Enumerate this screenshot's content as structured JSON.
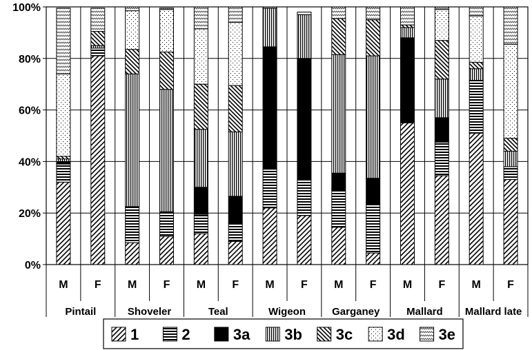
{
  "chart_data": {
    "type": "bar",
    "stacked": true,
    "percent": true,
    "groups": [
      "Pintail",
      "Shoveler",
      "Teal",
      "Wigeon",
      "Garganey",
      "Mallard",
      "Mallard late"
    ],
    "sexes": [
      "M",
      "F"
    ],
    "categories": [
      "Pintail M",
      "Pintail F",
      "Shoveler M",
      "Shoveler F",
      "Teal M",
      "Teal F",
      "Wigeon M",
      "Wigeon F",
      "Garganey M",
      "Garganey F",
      "Mallard M",
      "Mallard F",
      "Mallard late M",
      "Mallard late F"
    ],
    "ylim": [
      0,
      100
    ],
    "yticks": [
      "0%",
      "20%",
      "40%",
      "60%",
      "80%",
      "100%"
    ],
    "grid": true,
    "legend_position": "bottom",
    "series": [
      {
        "name": "1",
        "pattern": "diag-right",
        "values": [
          32,
          81,
          8.5,
          11,
          12,
          9,
          22,
          19,
          14.5,
          4.5,
          55,
          34.5,
          51,
          33
        ]
      },
      {
        "name": "2",
        "pattern": "horizontal",
        "values": [
          7,
          3,
          14,
          9.5,
          7.5,
          7,
          15,
          14,
          14.5,
          19,
          0,
          13,
          20.5,
          5
        ]
      },
      {
        "name": "3a",
        "pattern": "solid",
        "values": [
          1,
          0,
          0,
          0,
          10.5,
          10.5,
          47.5,
          47,
          6.5,
          10,
          33,
          9.5,
          0,
          0
        ]
      },
      {
        "name": "3b",
        "pattern": "vertical",
        "values": [
          1,
          1,
          51.5,
          47.5,
          22.5,
          25,
          15,
          17,
          46,
          47.5,
          4,
          15,
          4.5,
          6
        ]
      },
      {
        "name": "3c",
        "pattern": "diag-left",
        "values": [
          1,
          5.5,
          9.5,
          14.5,
          17.5,
          18,
          0,
          0,
          14,
          14,
          1,
          15,
          2.5,
          5
        ]
      },
      {
        "name": "3d",
        "pattern": "dots",
        "values": [
          32,
          0,
          15,
          16.5,
          21.5,
          24.5,
          0,
          0,
          0,
          0,
          0,
          12,
          18,
          36.5
        ]
      },
      {
        "name": "3e",
        "pattern": "zigzag",
        "values": [
          25.5,
          9,
          1.5,
          0.5,
          8.5,
          6,
          0.5,
          1,
          4.5,
          5,
          7,
          1,
          3.5,
          14.5
        ]
      }
    ]
  }
}
